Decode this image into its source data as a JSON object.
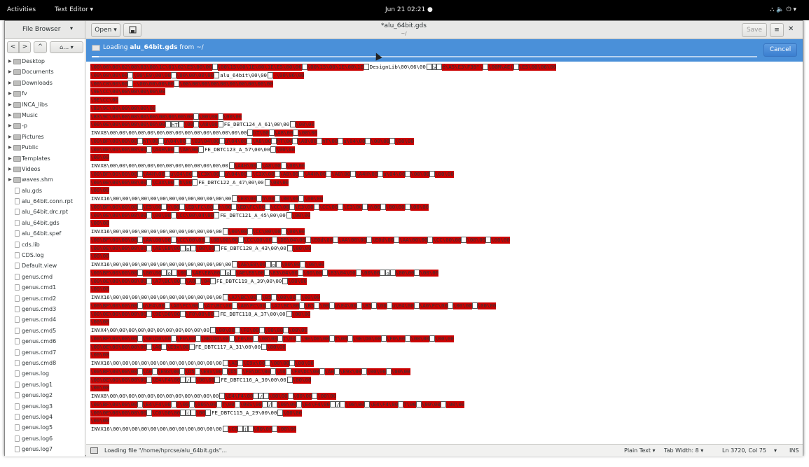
{
  "topbar": {
    "activities": "Activities",
    "app_menu": "Text Editor ▾",
    "clock": "Jun 21  02:21 ●",
    "tray": "⛬  🔈  ⏻ ▾"
  },
  "header": {
    "sidebar_title": "File Browser",
    "open_label": "Open",
    "doc_title": "*alu_64bit.gds",
    "doc_path": "~/",
    "save_label": "Save",
    "menu_icon": "≡",
    "close_icon": "✕",
    "dropdown_icon": "▾"
  },
  "sidebar": {
    "nav": {
      "back": "<",
      "forward": ">",
      "up": "^",
      "home": "⌂…"
    },
    "items": [
      {
        "name": "Desktop",
        "type": "folder"
      },
      {
        "name": "Documents",
        "type": "folder"
      },
      {
        "name": "Downloads",
        "type": "folder"
      },
      {
        "name": "fv",
        "type": "folder"
      },
      {
        "name": "INCA_libs",
        "type": "folder"
      },
      {
        "name": "Music",
        "type": "folder"
      },
      {
        "name": "-p",
        "type": "folder"
      },
      {
        "name": "Pictures",
        "type": "folder"
      },
      {
        "name": "Public",
        "type": "folder"
      },
      {
        "name": "Templates",
        "type": "folder"
      },
      {
        "name": "Videos",
        "type": "folder"
      },
      {
        "name": "waves.shm",
        "type": "folder"
      },
      {
        "name": "alu.gds",
        "type": "file"
      },
      {
        "name": "alu_64bit.conn.rpt",
        "type": "file"
      },
      {
        "name": "alu_64bit.drc.rpt",
        "type": "file"
      },
      {
        "name": "alu_64bit.gds",
        "type": "file"
      },
      {
        "name": "alu_64bit.spef",
        "type": "file"
      },
      {
        "name": "cds.lib",
        "type": "file"
      },
      {
        "name": "CDS.log",
        "type": "file"
      },
      {
        "name": "Default.view",
        "type": "file"
      },
      {
        "name": "genus.cmd",
        "type": "file"
      },
      {
        "name": "genus.cmd1",
        "type": "file"
      },
      {
        "name": "genus.cmd2",
        "type": "file"
      },
      {
        "name": "genus.cmd3",
        "type": "file"
      },
      {
        "name": "genus.cmd4",
        "type": "file"
      },
      {
        "name": "genus.cmd5",
        "type": "file"
      },
      {
        "name": "genus.cmd6",
        "type": "file"
      },
      {
        "name": "genus.cmd7",
        "type": "file"
      },
      {
        "name": "genus.cmd8",
        "type": "file"
      },
      {
        "name": "genus.log",
        "type": "file"
      },
      {
        "name": "genus.log1",
        "type": "file"
      },
      {
        "name": "genus.log2",
        "type": "file"
      },
      {
        "name": "genus.log3",
        "type": "file"
      },
      {
        "name": "genus.log4",
        "type": "file"
      },
      {
        "name": "genus.log5",
        "type": "file"
      },
      {
        "name": "genus.log6",
        "type": "file"
      },
      {
        "name": "genus.log7",
        "type": "file"
      }
    ]
  },
  "infobar": {
    "loading_prefix": "Loading ",
    "filename": "alu_64bit.gds",
    "loading_suffix": " from ~/",
    "cancel_label": "Cancel",
    "progress": 0.01
  },
  "editor": {
    "lines": [
      "\\00\\06\\00\\02\\00\\03\\00\\1C\\01\\02\\E5\\00\\06 \\00\\15\\00\\1E\\00\\1E\\E5\\00\\06 \\00\\15\\00\\1E\\00\\1E DesignLib\\00\\06\\00 > é\\A5\\E3\\F39\"\\ \\00M\\AE( \\E5\\00\\06\\00",
      "\\00\\00\\00\\00 \\00\\E9\\00\\00 \\00\\00\\00\\00 alu_64bit\\00\\00 -\\00\\06\\00",
      "\\00\\C0\\00\\00 -\\00\\00\\00\\00 \\00\\00\\00\\00\\00\\00\\00\\00\\00\\00",
      "\\9E\\CC\\00\\00\\00\\00\\00\\00",
      "\\9E\\CC\\00",
      "\\83\\9C\\00\\00\\00\\00\\00",
      "\\83\\9C\\00\\00\\00\\00\\00\\00\\00\\00\\00 \\00\\00 \\00\\00",
      "\\00\\0E\\00\\00\\00\\00\\00\\00 hT \\00 \\A8\\00 FE_DBTC124_A_61\\00\\00 \\00\\00",
      "INVX8\\00\\00\\00\\00\\00\\00\\00\\00\\00\\00\\00\\00\\00\\00\\00 hT\\00 \\A8\\00 \\00\\00",
      "\\00\\BF\\00\\00\\00 hT\\00 u\\04\\00 \\03\\04\\00 u\\04\\00 \\A8\\00 hT\\00 \\A8\\00 hT\\00 u\\04\\00 \\00\\00 \\00\\00",
      "\\00\\0E\\00\\00\\00\\00 \\A4H\\00 \\A8\\00 FE_DBTC123_A_57\\00\\00 \\00\\00",
      "\\00\\08",
      "INVX8\\00\\00\\00\\00\\00\\00\\00\\00\\00\\00\\00\\00\\00 \\A4H\\00 \\A8\\00 \\00\\00",
      "\\00\\BF\\00\\00\\00 \\A4H\\00 u\\04\\00 \\C3X\\00 u\\04\\00 \\C3X\\00 \\A8\\00 \\A4H\\00 \\A8\\00 \\A4H\\00 u\\04\\00 \\00\\00 \\00\\00",
      "\\00\\0E\\00\\00\\00\\00 \\C3X\\00 h\\00 FE_DBTC122_A_47\\00\\00 \\00\\00",
      "\\00\\08",
      "INVX16\\00\\00\\00\\00\\00\\00\\00\\00\\00\\00\\00\\00\\00 \\E3\\00 h\\00 \\00\\00 \\00\\00",
      "\\00\\BF\\00\\00\\00 \\E5\\00 h\\00 \\ED\\FC\\00 h\\00 \\ED\\FC\\00 \\CC\\00 \\E3\\00 \\CC\\00 \\E3\\00 h\\00 \\00\\00 \\00\\00",
      "\\00\\0E\\00\\00\\00\\00 \\00\\00 \\CC\\00\\04\\00 FE_DBTC121_A_45\\00\\00 \\00\\00",
      "\\00\\08",
      "INVX16\\00\\00\\00\\00\\00\\00\\00\\00\\00\\00\\00\\00 \\00\\00 \\CC\\00\\00 \\00\\00",
      "\\00\\BF\\00\\00\\00 \\AA\\00\\00 \\CC\\00\\00 \\0B\\00\\00 \\CC\\00\\00 \\DB\\04\\00 \\E0d\\00 \\AA\\00\\00 \\E0d\\00 \\AA\\00\\00 \\CC\\00\\00 \\00\\00 \\00\\00",
      "\\00\\0E\\00\\00\\00\\00 \\AE\\E8\\00 o \\00\\00 FE_DBTC120_A_43\\00\\00 \\00\\00",
      "\\00\\08",
      "INVX16\\00\\00\\00\\00\\00\\00\\00\\00\\00\\00\\00\\00\\00 \\AE\\E8\\00 o \\00\\00 \\00\\00",
      "\\00\\BF\\00\\00\\00 \\00\\00 o \\00 \\AE\\E8\\00 o \\AE\\E8\\00 \\83\\04\\00 \\00\\00 \\83\\04\\00 \\00\\00 o \\00\\00 \\00\\00",
      "\\00\\0E\\00\\00\\00\\00 \\A7\\BC\\00 \\A0 \\04 FE_DBTC119_A_39\\00\\00 \\00\\00",
      "\\00\\08",
      "INVX16\\00\\00\\00\\00\\00\\00\\00\\00\\00\\00\\00\\00 \\A7\\BC\\00 \\B5 \\00\\00 \\00\\00",
      "\\00\\BF\\00\\00\\00 u\\E4\\00 \\A0\\FC\\00 \\A7\\BC\\00 \\A0\\FC\\00 \\A7\\BC\\00 \\B5 \\00 u\\E4\\00 \\B5 \\00 u\\E4\\00 \\A0\\FC\\00 \\00\\00 \\00\\00",
      "\\00\\0E\\00\\00\\00\\00 \\9E\\D0\\00 \\F0\\00\\00 FE_DBTC118_A_37\\00\\00 \\00\\00",
      "\\00\\08",
      "INVX4\\00\\00\\00\\00\\00\\00\\00\\00\\00\\00\\00 \\00\\00 \\F0\\00 \\00\\00 \\00\\00",
      "\\00\\BF\\00\\00\\00 \\9E\\D0\\00 \\F0\\00 \\0B\\D0\\00 \\F0\\00 \\00\\00 T\\00 \\9E\\D0\\00 T\\00 \\9E\\D0\\00 \\F0\\00 \\00\\00 \\00\\00",
      "\\00\\0E\\00\\00\\00\\00 \\A0 \\E9x\\00 FE_DBTC117_A_31\\00\\00 \\00\\00",
      "\\00\\08",
      "INVX16\\00\\00\\00\\00\\00\\00\\00\\00\\00\\00\\00\\00 \\A0 \\E9x\\00 \\00\\00 \\00\\00",
      "\\00\\BF\\00\\00\\00 \\A0 \\E9x\\00 \\D5 \\E9x\\00 \\D5 \\F0\\DC\\00 \\A0 \\F0\\DC\\00 \\A0 \\E9x\\00 \\00\\00 \\00\\00",
      "\\00\\0E\\00\\00\\00\\00 \\E4\\F4\\00 / \\00\\00 FE_DBTC116_A_30\\00\\00 \\00\\00",
      "\\00\\08",
      "INVX8\\00\\00\\00\\00\\00\\00\\00\\00\\00\\00\\00\\00 \\E4\\F4\\00 / \\00\\00 \\00\\00 \\00\\00",
      "\\00\\BF\\00\\00\\00 \\E4\\F4\\00 T\\00 \\00S\\00 T\\00 \\00S\\00 / \\00\\00 \\E4\\F4\\00 / \\00\\00 \\E4\\F4\\00 T\\00 \\00\\00 \\00\\00",
      "\\00\\0E\\00\\00\\00\\00 \\C0\\00\\00 ( \\00 FE_DBTC115_A_29\\00\\00 \\00\\00",
      "\\00\\08",
      "INVX16\\00\\00\\00\\00\\00\\00\\00\\00\\00\\00\\00\\00 \\C0 ( \\00\\00 \\00\\00"
    ]
  },
  "status": {
    "message": "Loading file \"/home/hprcse/alu_64bit.gds\"...",
    "language": "Plain Text ▾",
    "tab_width": "Tab Width: 8 ▾",
    "position": "Ln 3720, Col 75",
    "position_arrow": "▾",
    "mode": "INS"
  }
}
